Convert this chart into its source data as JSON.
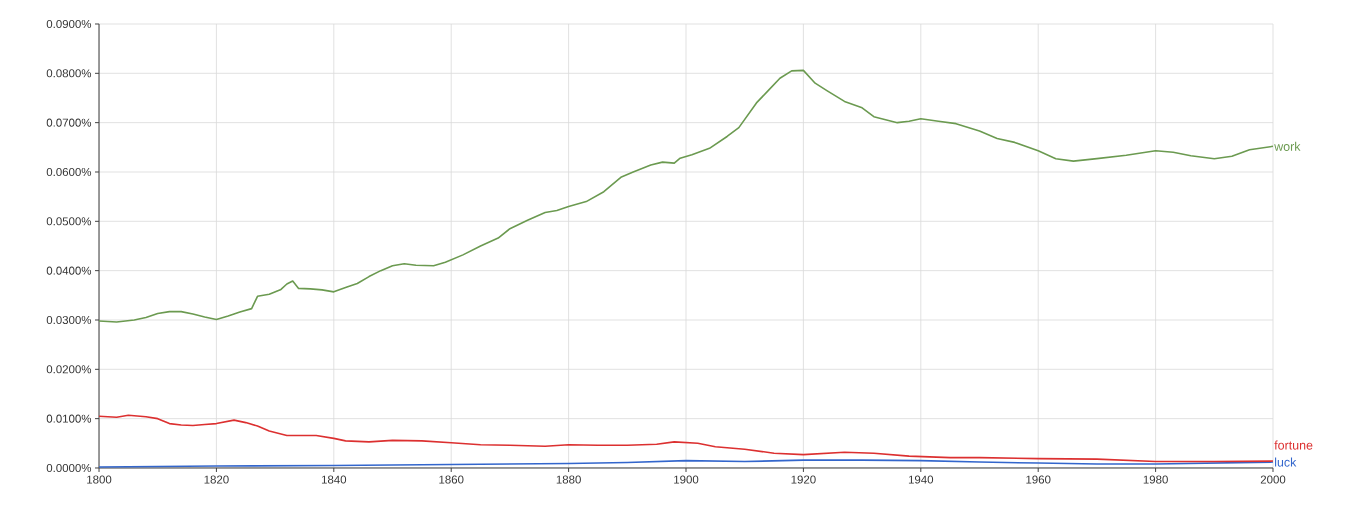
{
  "chart_data": {
    "type": "line",
    "xlim": [
      1800,
      2000
    ],
    "xticks": [
      1800,
      1820,
      1840,
      1860,
      1880,
      1900,
      1920,
      1940,
      1960,
      1980,
      2000
    ],
    "ylim": [
      0,
      0.09
    ],
    "yticks": [
      {
        "value": 0,
        "label": "0.0000%"
      },
      {
        "value": 0.01,
        "label": "0.0100%"
      },
      {
        "value": 0.02,
        "label": "0.0200%"
      },
      {
        "value": 0.03,
        "label": "0.0300%"
      },
      {
        "value": 0.04,
        "label": "0.0400%"
      },
      {
        "value": 0.05,
        "label": "0.0500%"
      },
      {
        "value": 0.06,
        "label": "0.0600%"
      },
      {
        "value": 0.07,
        "label": "0.0700%"
      },
      {
        "value": 0.08,
        "label": "0.0800%"
      },
      {
        "value": 0.09,
        "label": "0.0900%"
      }
    ],
    "grid": true,
    "marker": "none",
    "line_style": "solid",
    "series": [
      {
        "name": "work",
        "color": "#6b9a50",
        "x": [
          1800,
          1803,
          1806,
          1808,
          1810,
          1812,
          1814,
          1816,
          1818,
          1820,
          1822,
          1824,
          1826,
          1827,
          1829,
          1831,
          1832,
          1833,
          1834,
          1836,
          1838,
          1840,
          1842,
          1844,
          1846,
          1848,
          1850,
          1852,
          1854,
          1857,
          1859,
          1862,
          1865,
          1868,
          1870,
          1873,
          1876,
          1878,
          1880,
          1883,
          1886,
          1889,
          1891,
          1894,
          1896,
          1898,
          1899,
          1901,
          1904,
          1907,
          1909,
          1912,
          1914,
          1916,
          1918,
          1920,
          1922,
          1924,
          1927,
          1930,
          1932,
          1934,
          1936,
          1938,
          1940,
          1943,
          1946,
          1950,
          1953,
          1956,
          1960,
          1963,
          1966,
          1970,
          1975,
          1980,
          1983,
          1986,
          1990,
          1993,
          1996,
          2000
        ],
        "values": [
          0.0298,
          0.0296,
          0.03,
          0.0305,
          0.0313,
          0.0317,
          0.0317,
          0.0312,
          0.0306,
          0.0301,
          0.0308,
          0.0316,
          0.0323,
          0.0348,
          0.0352,
          0.0362,
          0.0373,
          0.0379,
          0.0364,
          0.0363,
          0.0361,
          0.0357,
          0.0366,
          0.0374,
          0.0388,
          0.04,
          0.041,
          0.0414,
          0.0411,
          0.041,
          0.0417,
          0.0432,
          0.045,
          0.0466,
          0.0485,
          0.0502,
          0.0518,
          0.0522,
          0.053,
          0.054,
          0.056,
          0.059,
          0.06,
          0.0614,
          0.062,
          0.0618,
          0.0628,
          0.0635,
          0.0648,
          0.0672,
          0.069,
          0.074,
          0.0765,
          0.079,
          0.0805,
          0.0806,
          0.078,
          0.0765,
          0.0743,
          0.073,
          0.0712,
          0.0706,
          0.07,
          0.0703,
          0.0708,
          0.0703,
          0.0698,
          0.0683,
          0.0668,
          0.066,
          0.0643,
          0.0627,
          0.0622,
          0.0627,
          0.0634,
          0.0643,
          0.064,
          0.0633,
          0.0627,
          0.0632,
          0.0645,
          0.0652
        ]
      },
      {
        "name": "luck",
        "color": "#3366cc",
        "x": [
          1800,
          1820,
          1840,
          1860,
          1880,
          1890,
          1900,
          1910,
          1920,
          1930,
          1940,
          1950,
          1960,
          1970,
          1980,
          2000
        ],
        "values": [
          0.0002,
          0.0004,
          0.0005,
          0.0007,
          0.0009,
          0.0011,
          0.0015,
          0.0013,
          0.0016,
          0.0016,
          0.0015,
          0.0012,
          0.001,
          0.0008,
          0.0008,
          0.0012
        ]
      },
      {
        "name": "fortune",
        "color": "#dc3030",
        "x": [
          1800,
          1803,
          1805,
          1808,
          1810,
          1812,
          1814,
          1816,
          1818,
          1820,
          1823,
          1825,
          1827,
          1829,
          1832,
          1834,
          1837,
          1840,
          1842,
          1846,
          1850,
          1855,
          1860,
          1865,
          1870,
          1876,
          1880,
          1885,
          1890,
          1895,
          1898,
          1902,
          1905,
          1910,
          1915,
          1920,
          1927,
          1932,
          1938,
          1945,
          1950,
          1960,
          1970,
          1980,
          1990,
          2000
        ],
        "values": [
          0.0105,
          0.0103,
          0.0107,
          0.0104,
          0.01,
          0.009,
          0.0087,
          0.0086,
          0.0088,
          0.009,
          0.0097,
          0.0092,
          0.0085,
          0.0075,
          0.0066,
          0.0066,
          0.0066,
          0.006,
          0.0055,
          0.0053,
          0.0056,
          0.0055,
          0.0051,
          0.0047,
          0.0046,
          0.0044,
          0.0047,
          0.0046,
          0.0046,
          0.0048,
          0.0053,
          0.005,
          0.0043,
          0.0038,
          0.003,
          0.0027,
          0.0032,
          0.003,
          0.0024,
          0.0021,
          0.0021,
          0.0019,
          0.0018,
          0.0013,
          0.0013,
          0.0014
        ]
      }
    ]
  }
}
